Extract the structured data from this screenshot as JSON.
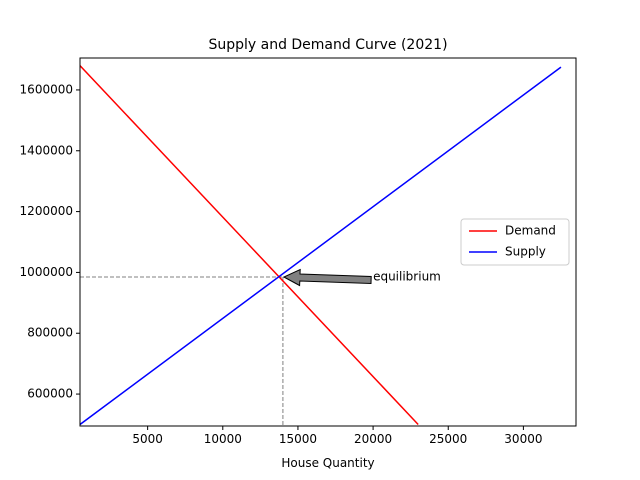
{
  "chart_data": {
    "type": "line",
    "title": "Supply and Demand Curve (2021)",
    "xlabel": "House Quantity",
    "ylabel": "",
    "xlim": [
      500,
      33500
    ],
    "ylim": [
      495000,
      1705000
    ],
    "x_ticks": [
      5000,
      10000,
      15000,
      20000,
      25000,
      30000
    ],
    "x_tick_labels": [
      "5000",
      "10000",
      "15000",
      "20000",
      "25000",
      "30000"
    ],
    "y_ticks": [
      600000,
      800000,
      1000000,
      1200000,
      1400000,
      1600000
    ],
    "y_tick_labels": [
      "600000",
      "800000",
      "1000000",
      "1200000",
      "1400000",
      "1600000"
    ],
    "grid": false,
    "legend": {
      "position": "center-right"
    },
    "series": [
      {
        "name": "Demand",
        "color": "#ff0000",
        "x": [
          500,
          23000
        ],
        "y": [
          1680000,
          500000
        ]
      },
      {
        "name": "Supply",
        "color": "#0000ff",
        "x": [
          500,
          32500
        ],
        "y": [
          500000,
          1675000
        ]
      }
    ],
    "equilibrium": {
      "x": 14000,
      "y": 985000
    },
    "annotation": {
      "text": "equilibrium",
      "x": 14000,
      "y": 985000,
      "text_x": 20000,
      "text_y": 985000
    }
  }
}
